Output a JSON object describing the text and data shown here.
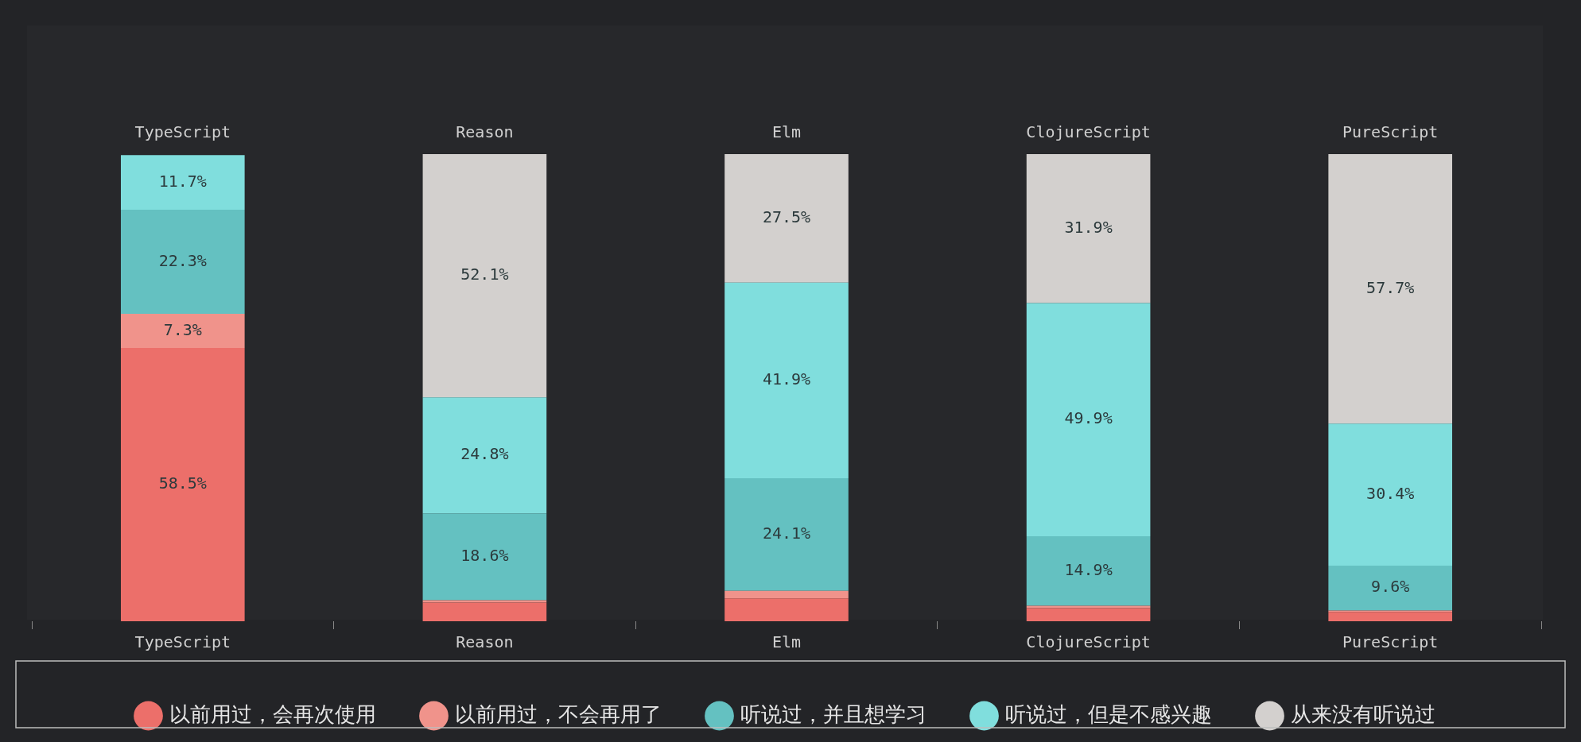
{
  "chart_data": {
    "type": "bar",
    "stacked": true,
    "categories": [
      "TypeScript",
      "Reason",
      "Elm",
      "ClojureScript",
      "PureScript"
    ],
    "ylim": [
      0,
      100
    ],
    "tick_labels": "x",
    "legend": "bottom",
    "grid": false,
    "series": [
      {
        "name": "以前用过，会再次使用",
        "color": "#ec6f6a",
        "values": [
          58.5,
          4.0,
          4.9,
          2.8,
          2.0
        ],
        "value_labels": [
          "58.5%",
          null,
          null,
          null,
          null
        ]
      },
      {
        "name": "以前用过，不会再用了",
        "color": "#f0938b",
        "values": [
          7.3,
          0.5,
          1.6,
          0.5,
          0.3
        ],
        "value_labels": [
          "7.3%",
          null,
          null,
          null,
          null
        ]
      },
      {
        "name": "听说过，并且想学习",
        "color": "#64c1c1",
        "values": [
          22.3,
          18.6,
          24.1,
          14.9,
          9.6
        ],
        "value_labels": [
          "22.3%",
          "18.6%",
          "24.1%",
          "14.9%",
          "9.6%"
        ]
      },
      {
        "name": "听说过，但是不感兴趣",
        "color": "#80dedd",
        "values": [
          11.7,
          24.8,
          41.9,
          49.9,
          30.4
        ],
        "value_labels": [
          "11.7%",
          "24.8%",
          "41.9%",
          "49.9%",
          "30.4%"
        ]
      },
      {
        "name": "从来没有听说过",
        "color": "#d3d0ce",
        "values": [
          0,
          52.1,
          27.5,
          31.9,
          57.7
        ],
        "value_labels": [
          null,
          "52.1%",
          "27.5%",
          "31.9%",
          "57.7%"
        ]
      }
    ]
  }
}
